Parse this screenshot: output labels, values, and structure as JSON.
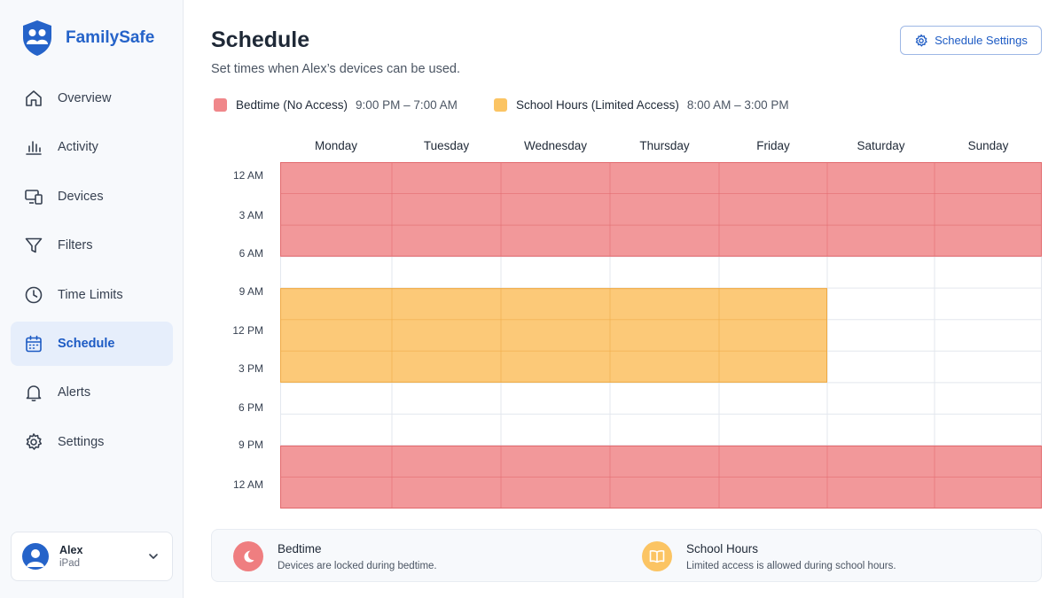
{
  "app": {
    "name": "FamilySafe"
  },
  "sidebar": {
    "items": [
      {
        "label": "Overview",
        "icon": "home-icon",
        "active": false
      },
      {
        "label": "Activity",
        "icon": "bar-chart-icon",
        "active": false
      },
      {
        "label": "Devices",
        "icon": "devices-icon",
        "active": false
      },
      {
        "label": "Filters",
        "icon": "filter-icon",
        "active": false
      },
      {
        "label": "Time Limits",
        "icon": "clock-icon",
        "active": false
      },
      {
        "label": "Schedule",
        "icon": "calendar-icon",
        "active": true
      },
      {
        "label": "Alerts",
        "icon": "bell-icon",
        "active": false
      },
      {
        "label": "Settings",
        "icon": "gear-icon",
        "active": false
      }
    ],
    "profile": {
      "name": "Alex",
      "device": "iPad"
    }
  },
  "header": {
    "title": "Schedule",
    "subtitle": "Set times when Alex’s devices can be used.",
    "settings_button": "Schedule Settings"
  },
  "legend": [
    {
      "name": "Bedtime (No Access)",
      "time": "9:00 PM – 7:00 AM",
      "color": "#f0878a"
    },
    {
      "name": "School Hours (Limited Access)",
      "time": "8:00 AM – 3:00 PM",
      "color": "#fbc463"
    }
  ],
  "schedule": {
    "days": [
      "Monday",
      "Tuesday",
      "Wednesday",
      "Thursday",
      "Friday",
      "Saturday",
      "Sunday"
    ],
    "time_labels": [
      "12 AM",
      "3 AM",
      "6 AM",
      "9 AM",
      "12 PM",
      "3 PM",
      "6 PM",
      "9 PM",
      "12 AM"
    ],
    "row_count": 11,
    "blocks": [
      {
        "type": "bedtime",
        "days": [
          0,
          1,
          2,
          3,
          4,
          5,
          6
        ],
        "start_row": 0,
        "end_row": 3
      },
      {
        "type": "school",
        "days": [
          0,
          1,
          2,
          3,
          4
        ],
        "start_row": 4,
        "end_row": 7
      },
      {
        "type": "bedtime",
        "days": [
          0,
          1,
          2,
          3,
          4,
          5,
          6
        ],
        "start_row": 9,
        "end_row": 11
      }
    ],
    "colors": {
      "bedtime_fill": "#f2989a",
      "bedtime_line": "#e26a6e",
      "school_fill": "#fcc978",
      "school_line": "#eeaa45",
      "grid_line": "#e3e7ee"
    }
  },
  "info": {
    "bedtime": {
      "title": "Bedtime",
      "desc": "Devices are locked during bedtime.",
      "color": "#ef7e80"
    },
    "school": {
      "title": "School Hours",
      "desc": "Limited access is allowed during school hours.",
      "color": "#fbc463"
    }
  }
}
